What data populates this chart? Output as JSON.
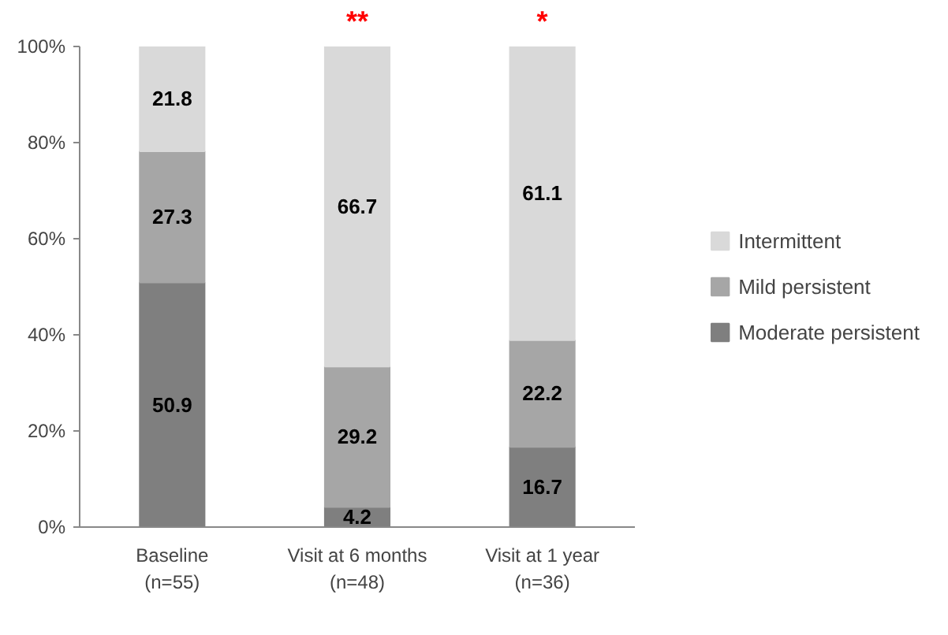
{
  "chart_data": {
    "type": "bar",
    "stacked": true,
    "categories": [
      "Baseline\n(n=55)",
      "Visit at 6 months\n(n=48)",
      "Visit at 1 year\n(n=36)"
    ],
    "series": [
      {
        "name": "Moderate persistent",
        "color": "#7f7f7f",
        "values": [
          50.9,
          4.2,
          16.7
        ]
      },
      {
        "name": "Mild persistent",
        "color": "#a6a6a6",
        "values": [
          27.3,
          29.2,
          22.2
        ]
      },
      {
        "name": "Intermittent",
        "color": "#d9d9d9",
        "values": [
          21.8,
          66.7,
          61.1
        ]
      }
    ],
    "ylim": [
      0,
      100
    ],
    "yticks": [
      {
        "value": 0,
        "label": "0%"
      },
      {
        "value": 20,
        "label": "20%"
      },
      {
        "value": 40,
        "label": "40%"
      },
      {
        "value": 60,
        "label": "60%"
      },
      {
        "value": 80,
        "label": "80%"
      },
      {
        "value": 100,
        "label": "100%"
      }
    ],
    "data_labels": true,
    "grid": false,
    "legend": "right",
    "annotations": [
      {
        "text": "**",
        "x": "Visit at 6 months\n(n=48)",
        "y": 100
      },
      {
        "text": "*",
        "x": "Visit at 1 year\n(n=36)",
        "y": 100
      }
    ]
  }
}
